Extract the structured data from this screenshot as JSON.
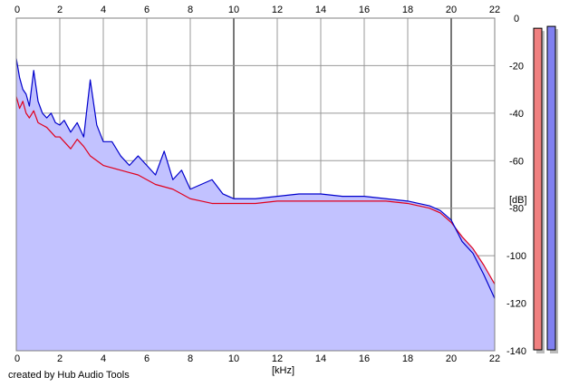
{
  "credit": "created by Hub Audio Tools",
  "chart_data": {
    "type": "line",
    "title": "",
    "xlabel": "[kHz]",
    "ylabel": "[dB]",
    "xlim": [
      0,
      22
    ],
    "ylim": [
      -140,
      0
    ],
    "x_ticks": [
      0,
      2,
      4,
      6,
      8,
      10,
      12,
      14,
      16,
      18,
      20,
      22
    ],
    "y_ticks": [
      0,
      -20,
      -40,
      -60,
      -80,
      -100,
      -120,
      -140
    ],
    "x_tick_labels": [
      "0",
      "2",
      "4",
      "6",
      "8",
      "10",
      "12",
      "14",
      "16",
      "18",
      "20",
      "22"
    ],
    "y_tick_labels": [
      "0",
      "-20",
      "-40",
      "-60",
      "-80",
      "-100",
      "-120",
      "-140"
    ],
    "grid": true,
    "x_axis_top_labels": true,
    "colors": {
      "plot_background": "#ffffff",
      "fill": "#c2c2ff",
      "grid": "#999999",
      "grid_major": "#777777",
      "channel_1": "#e0001c",
      "channel_2": "#0000cc",
      "meter_1_fill": "#f08080",
      "meter_2_fill": "#8080f0",
      "meter_shadow": "#bbbbbb"
    },
    "series": [
      {
        "color": "#e0001c",
        "x": [
          0,
          0.15,
          0.3,
          0.45,
          0.6,
          0.8,
          1.0,
          1.2,
          1.4,
          1.6,
          1.8,
          2.0,
          2.2,
          2.5,
          2.8,
          3.1,
          3.4,
          3.7,
          4.0,
          4.4,
          4.8,
          5.2,
          5.6,
          6.0,
          6.4,
          6.8,
          7.2,
          7.6,
          8.0,
          8.5,
          9.0,
          9.5,
          10.0,
          11.0,
          12.0,
          13.0,
          14.0,
          15.0,
          16.0,
          17.0,
          18.0,
          19.0,
          19.5,
          20.0,
          20.5,
          21.0,
          21.5,
          22.0
        ],
        "values": [
          -33,
          -38,
          -35,
          -40,
          -42,
          -39,
          -44,
          -45,
          -46,
          -48,
          -50,
          -50,
          -52,
          -55,
          -51,
          -54,
          -58,
          -60,
          -62,
          -63,
          -64,
          -65,
          -66,
          -68,
          -70,
          -71,
          -72,
          -74,
          -76,
          -77,
          -78,
          -78,
          -78,
          -78,
          -77,
          -77,
          -77,
          -77,
          -77,
          -77,
          -78,
          -80,
          -82,
          -86,
          -92,
          -97,
          -104,
          -112
        ]
      },
      {
        "color": "#0000cc",
        "x": [
          0,
          0.15,
          0.3,
          0.45,
          0.6,
          0.8,
          1.0,
          1.2,
          1.4,
          1.6,
          1.8,
          2.0,
          2.2,
          2.5,
          2.8,
          3.1,
          3.4,
          3.7,
          4.0,
          4.4,
          4.8,
          5.2,
          5.6,
          6.0,
          6.4,
          6.8,
          7.2,
          7.6,
          8.0,
          8.5,
          9.0,
          9.5,
          10.0,
          11.0,
          12.0,
          13.0,
          14.0,
          15.0,
          16.0,
          17.0,
          18.0,
          19.0,
          19.5,
          20.0,
          20.5,
          21.0,
          21.5,
          22.0
        ],
        "values": [
          -17,
          -25,
          -30,
          -32,
          -37,
          -22,
          -35,
          -40,
          -42,
          -40,
          -44,
          -45,
          -43,
          -48,
          -44,
          -50,
          -26,
          -45,
          -52,
          -52,
          -58,
          -62,
          -58,
          -62,
          -66,
          -56,
          -68,
          -64,
          -72,
          -70,
          -68,
          -74,
          -76,
          -76,
          -75,
          -74,
          -74,
          -75,
          -75,
          -76,
          -77,
          -79,
          -81,
          -85,
          -94,
          -99,
          -108,
          -118
        ]
      }
    ],
    "level_meters": [
      {
        "color": "#f08080",
        "level_db": -10
      },
      {
        "color": "#8080f0",
        "level_db": -6
      }
    ]
  }
}
